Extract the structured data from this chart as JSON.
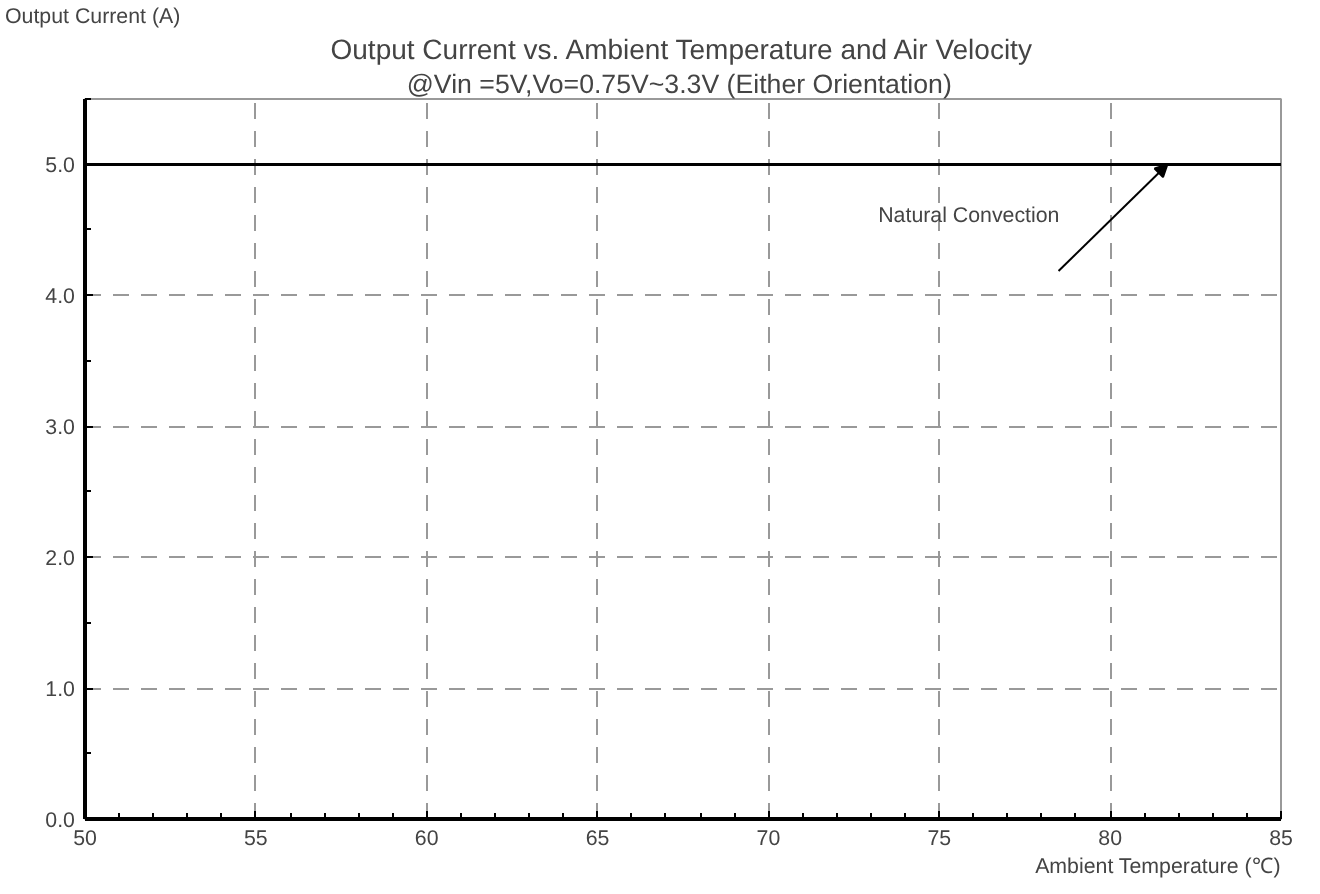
{
  "chart_data": {
    "type": "line",
    "title": "Output Current vs. Ambient Temperature and Air Velocity",
    "subtitle": "@Vin =5V,Vo=0.75V~3.3V  (Either Orientation)",
    "xlabel": "Ambient Temperature (℃)",
    "ylabel": "Output Current (A)",
    "x": [
      50,
      85
    ],
    "series": [
      {
        "name": "Natural Convection",
        "color": "#000000",
        "values": [
          5.0,
          5.0
        ]
      }
    ],
    "xlim": [
      50,
      85
    ],
    "ylim": [
      0,
      5.5
    ],
    "xticks": [
      50,
      55,
      60,
      65,
      70,
      75,
      80,
      85
    ],
    "yticks": [
      {
        "value": 0,
        "label": "0.0"
      },
      {
        "value": 1,
        "label": "1.0"
      },
      {
        "value": 2,
        "label": "2.0"
      },
      {
        "value": 3,
        "label": "3.0"
      },
      {
        "value": 4,
        "label": "4.0"
      },
      {
        "value": 5,
        "label": "5.0"
      }
    ],
    "grid": true,
    "legend": false,
    "line_style": "solid",
    "marker": "none"
  }
}
